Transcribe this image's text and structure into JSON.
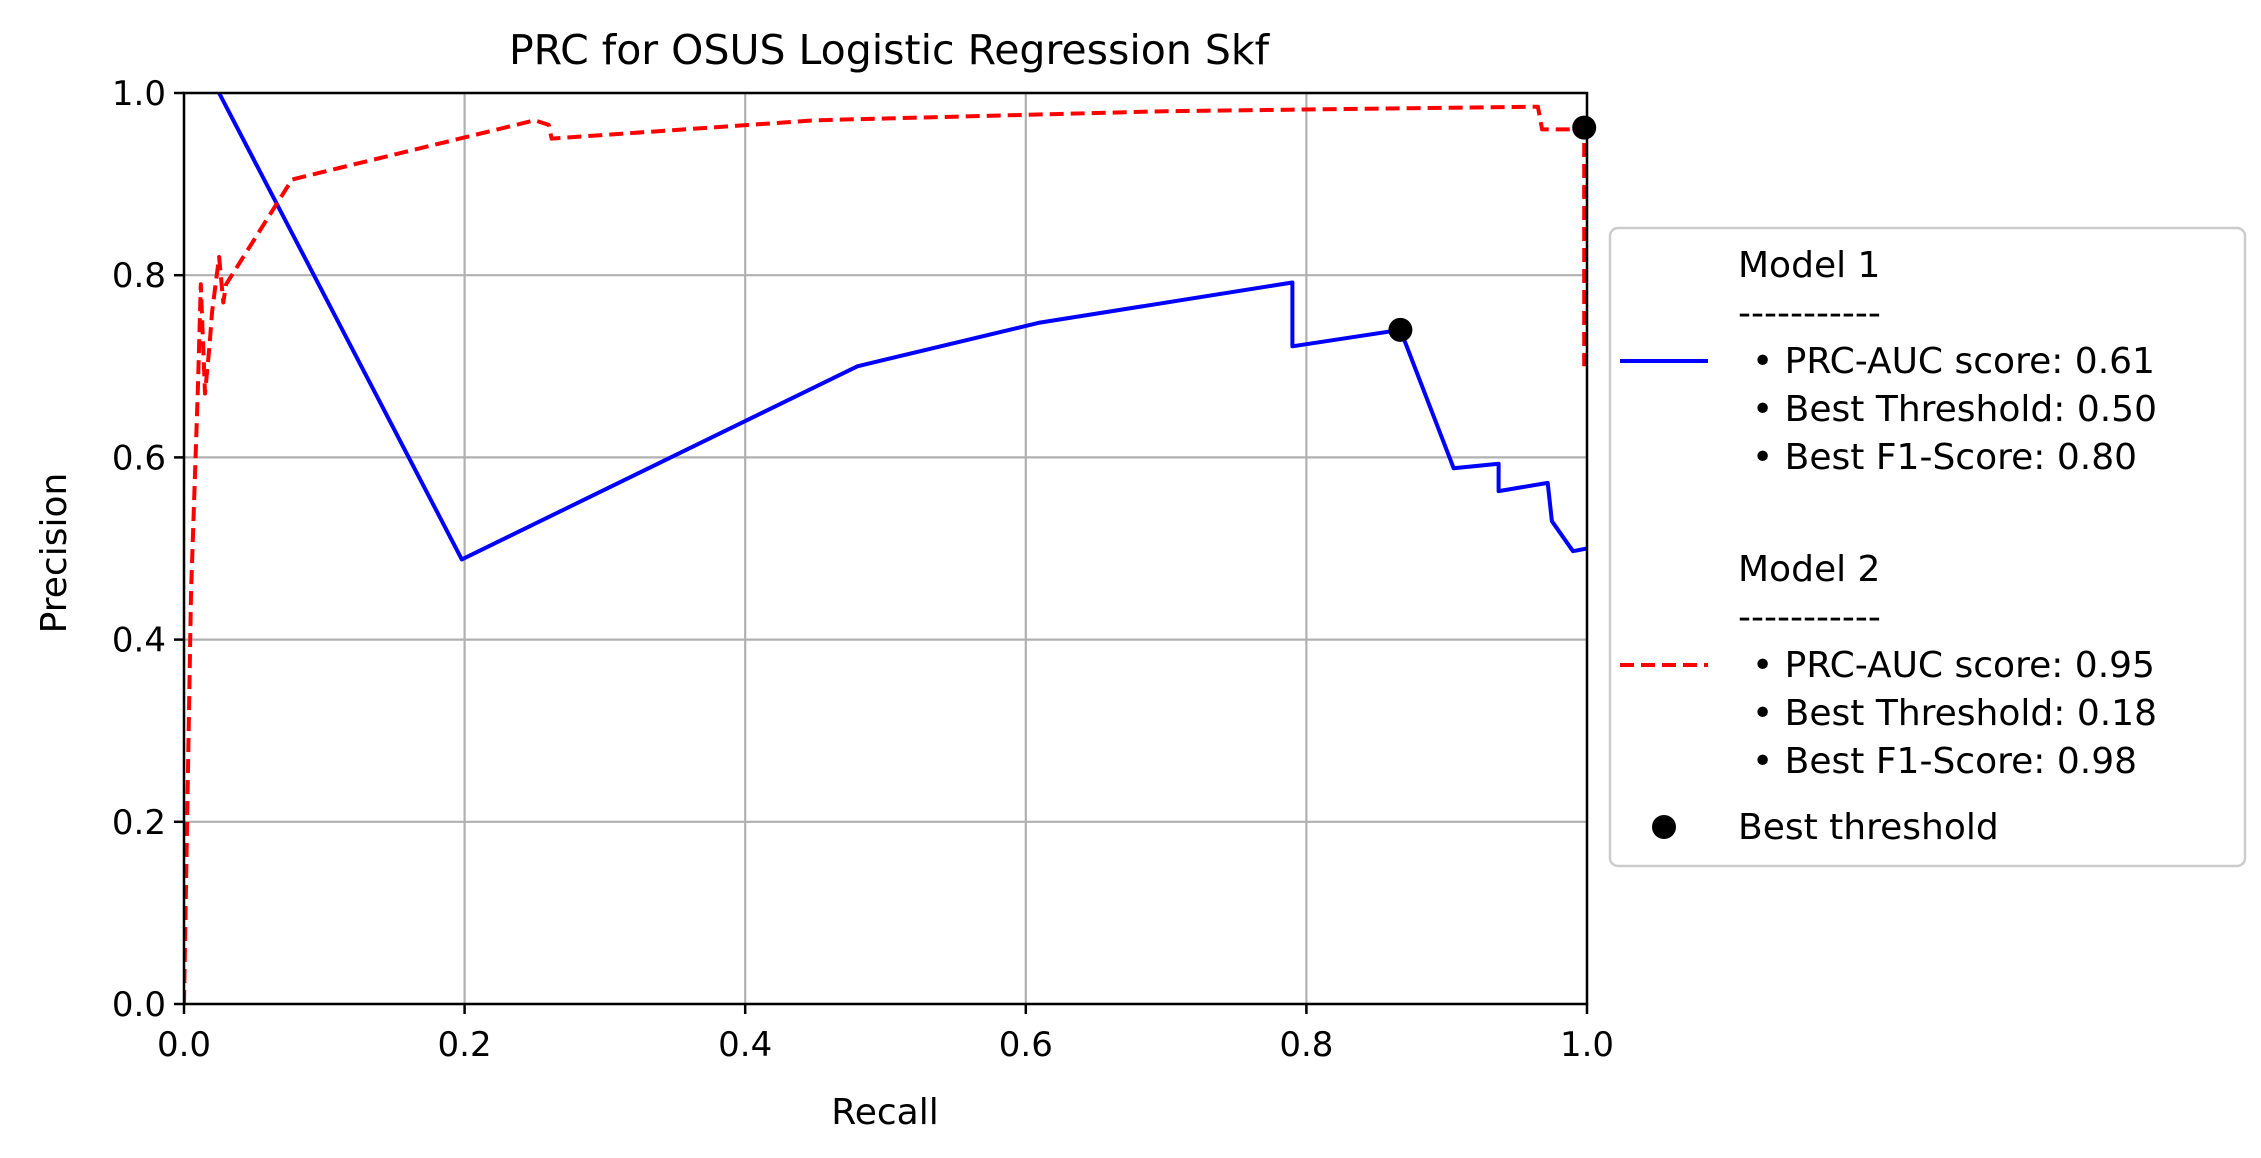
{
  "chart_data": {
    "type": "line",
    "title": "PRC for OSUS Logistic Regression Skf",
    "xlabel": "Recall",
    "ylabel": "Precision",
    "xlim": [
      0.0,
      1.0
    ],
    "ylim": [
      0.0,
      1.0
    ],
    "xticks": [
      "0.0",
      "0.2",
      "0.4",
      "0.6",
      "0.8",
      "1.0"
    ],
    "yticks": [
      "0.0",
      "0.2",
      "0.4",
      "0.6",
      "0.8",
      "1.0"
    ],
    "grid": true,
    "legend_position": "center-right-outside",
    "series": [
      {
        "color": "#0000ff",
        "style": "solid",
        "legend_lines": [
          "Model 1",
          "-----------",
          "• PRC-AUC score: 0.61",
          "• Best Threshold: 0.50",
          "• Best F1-Score: 0.80"
        ],
        "x": [
          0.025,
          0.198,
          0.48,
          0.61,
          0.79,
          0.79,
          0.867,
          0.905,
          0.937,
          0.937,
          0.972,
          0.975,
          0.99,
          1.0
        ],
        "y": [
          1.0,
          0.488,
          0.7,
          0.748,
          0.792,
          0.722,
          0.74,
          0.588,
          0.593,
          0.563,
          0.572,
          0.53,
          0.497,
          0.5
        ]
      },
      {
        "color": "#ff0000",
        "style": "dashed",
        "legend_lines": [
          "Model 2",
          "-----------",
          "• PRC-AUC score: 0.95",
          "• Best Threshold: 0.18",
          "• Best F1-Score: 0.98"
        ],
        "x": [
          0.0,
          0.005,
          0.01,
          0.012,
          0.015,
          0.018,
          0.02,
          0.025,
          0.028,
          0.03,
          0.077,
          0.25,
          0.26,
          0.262,
          0.45,
          0.7,
          0.965,
          0.968,
          0.998,
          0.998
        ],
        "y": [
          0.0,
          0.45,
          0.68,
          0.79,
          0.67,
          0.72,
          0.76,
          0.82,
          0.77,
          0.79,
          0.905,
          0.97,
          0.965,
          0.95,
          0.97,
          0.98,
          0.985,
          0.96,
          0.96,
          0.7
        ]
      }
    ],
    "best_points": {
      "label": "Best threshold",
      "color": "#000000",
      "points": [
        {
          "x": 0.867,
          "y": 0.74
        },
        {
          "x": 0.998,
          "y": 0.962
        }
      ]
    }
  }
}
